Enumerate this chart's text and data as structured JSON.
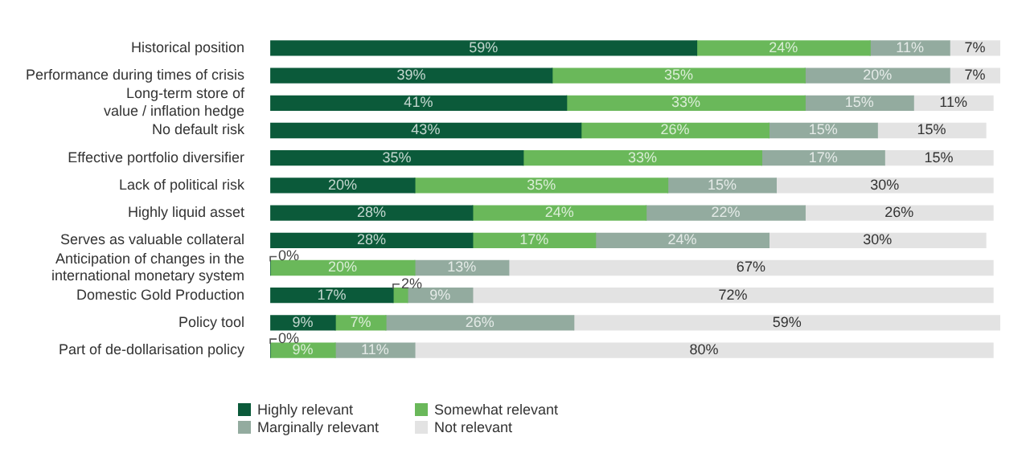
{
  "chart_data": {
    "type": "bar",
    "orientation": "horizontal",
    "stacked": true,
    "legend": "bottom",
    "grid": false,
    "categories": [
      "Historical position",
      "Performance during times of crisis",
      "Long-term store of\nvalue / inflation hedge",
      "No default risk",
      "Effective portfolio diversifier",
      "Lack of political risk",
      "Highly liquid asset",
      "Serves as valuable collateral",
      "Anticipation of changes in the\ninternational monetary system",
      "Domestic Gold Production",
      "Policy tool",
      "Part of de-dollarisation policy"
    ],
    "series": [
      {
        "name": "Highly relevant",
        "color": "#0b5a3a",
        "values": [
          59,
          39,
          41,
          43,
          35,
          20,
          28,
          28,
          0,
          17,
          9,
          0
        ],
        "value_labels": [
          "59%",
          "39%",
          "41%",
          "43%",
          "35%",
          "20%",
          "28%",
          "28%",
          "0%",
          "17%",
          "9%",
          "0%"
        ]
      },
      {
        "name": "Somewhat relevant",
        "color": "#6ab85a",
        "values": [
          24,
          35,
          33,
          26,
          33,
          35,
          24,
          17,
          20,
          2,
          7,
          9
        ],
        "value_labels": [
          "24%",
          "35%",
          "33%",
          "26%",
          "33%",
          "35%",
          "24%",
          "17%",
          "20%",
          "2%",
          "7%",
          "9%"
        ]
      },
      {
        "name": "Marginally relevant",
        "color": "#93ab9f",
        "values": [
          11,
          20,
          15,
          15,
          17,
          15,
          22,
          24,
          13,
          9,
          26,
          11
        ],
        "value_labels": [
          "11%",
          "20%",
          "15%",
          "15%",
          "17%",
          "15%",
          "22%",
          "24%",
          "13%",
          "9%",
          "26%",
          "11%"
        ]
      },
      {
        "name": "Not relevant",
        "color": "#e3e3e3",
        "values": [
          7,
          7,
          11,
          15,
          15,
          30,
          26,
          30,
          67,
          72,
          59,
          80
        ],
        "value_labels": [
          "7%",
          "7%",
          "11%",
          "15%",
          "15%",
          "30%",
          "26%",
          "30%",
          "67%",
          "72%",
          "59%",
          "80%"
        ]
      }
    ]
  }
}
